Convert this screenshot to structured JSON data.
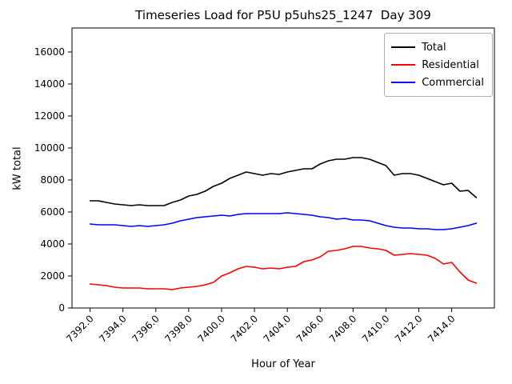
{
  "title": "Timeseries Load for P5U p5uhs25_1247  Day 309",
  "chart_data": {
    "type": "line",
    "title": "Timeseries Load for P5U p5uhs25_1247  Day 309",
    "xlabel": "Hour of Year",
    "ylabel": "kW total",
    "xlim": [
      7390.9,
      7416.6
    ],
    "ylim": [
      0,
      17500
    ],
    "x_ticks": [
      7392,
      7394,
      7396,
      7398,
      7400,
      7402,
      7404,
      7406,
      7408,
      7410,
      7412,
      7414
    ],
    "y_ticks": [
      0,
      2000,
      4000,
      6000,
      8000,
      10000,
      12000,
      14000,
      16000
    ],
    "grid": false,
    "legend_position": "upper right",
    "x": [
      7392.0,
      7392.5,
      7393.0,
      7393.5,
      7394.0,
      7394.5,
      7395.0,
      7395.5,
      7396.0,
      7396.5,
      7397.0,
      7397.5,
      7398.0,
      7398.5,
      7399.0,
      7399.5,
      7400.0,
      7400.5,
      7401.0,
      7401.5,
      7402.0,
      7402.5,
      7403.0,
      7403.5,
      7404.0,
      7404.5,
      7405.0,
      7405.5,
      7406.0,
      7406.5,
      7407.0,
      7407.5,
      7408.0,
      7408.5,
      7409.0,
      7409.5,
      7410.0,
      7410.5,
      7411.0,
      7411.5,
      7412.0,
      7412.5,
      7413.0,
      7413.5,
      7414.0,
      7414.5,
      7415.0,
      7415.5
    ],
    "series": [
      {
        "name": "Total",
        "color": "#000000",
        "values": [
          6700,
          6700,
          6600,
          6500,
          6450,
          6400,
          6450,
          6400,
          6400,
          6400,
          6600,
          6750,
          7000,
          7100,
          7300,
          7600,
          7800,
          8100,
          8300,
          8500,
          8400,
          8300,
          8400,
          8350,
          8500,
          8600,
          8700,
          8700,
          9000,
          9200,
          9300,
          9300,
          9400,
          9400,
          9300,
          9100,
          8900,
          8300,
          8400,
          8400,
          8300,
          8100,
          7900,
          7700,
          7800,
          7300,
          7350,
          6900
        ]
      },
      {
        "name": "Residential",
        "color": "#ff0000",
        "values": [
          1500,
          1450,
          1400,
          1300,
          1250,
          1250,
          1250,
          1200,
          1200,
          1200,
          1150,
          1250,
          1300,
          1350,
          1450,
          1600,
          2000,
          2200,
          2450,
          2600,
          2550,
          2450,
          2500,
          2450,
          2550,
          2600,
          2900,
          3000,
          3200,
          3550,
          3600,
          3700,
          3850,
          3850,
          3750,
          3700,
          3600,
          3300,
          3350,
          3400,
          3350,
          3300,
          3100,
          2750,
          2850,
          2250,
          1750,
          1550
        ]
      },
      {
        "name": "Commercial",
        "color": "#0000ff",
        "values": [
          5250,
          5200,
          5200,
          5200,
          5150,
          5100,
          5150,
          5100,
          5150,
          5200,
          5300,
          5450,
          5550,
          5650,
          5700,
          5750,
          5800,
          5750,
          5850,
          5900,
          5900,
          5900,
          5900,
          5900,
          5950,
          5900,
          5850,
          5800,
          5700,
          5650,
          5550,
          5600,
          5500,
          5500,
          5450,
          5300,
          5150,
          5050,
          5000,
          5000,
          4950,
          4950,
          4900,
          4900,
          4950,
          5050,
          5150,
          5300
        ]
      }
    ]
  }
}
